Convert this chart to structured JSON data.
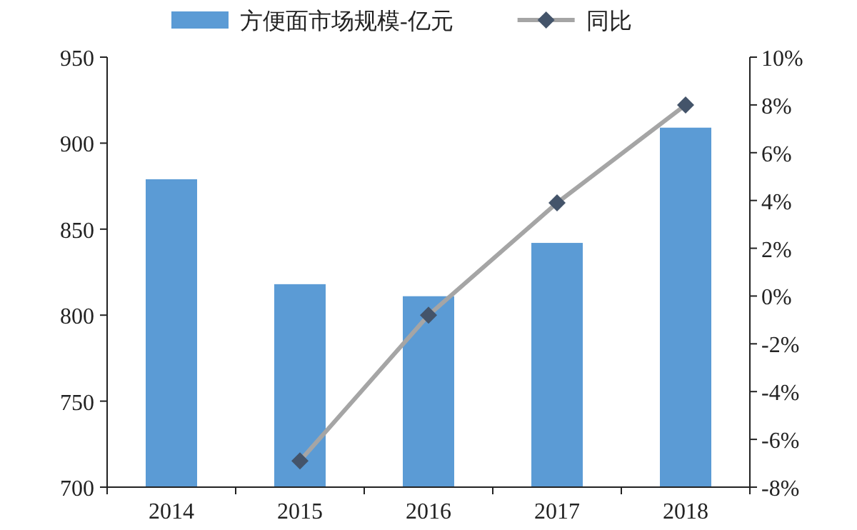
{
  "chart_data": {
    "type": "bar",
    "categories": [
      "2014",
      "2015",
      "2016",
      "2017",
      "2018"
    ],
    "series": [
      {
        "name": "方便面市场规模-亿元",
        "color": "#5b9bd5",
        "values": [
          879,
          818,
          811,
          842,
          909
        ]
      },
      {
        "name": "同比",
        "type": "line",
        "axis": "y2",
        "color": "#a5a5a5",
        "marker": "diamond",
        "values": [
          null,
          -6.9,
          -0.8,
          3.9,
          8.0
        ]
      }
    ],
    "ylim": [
      700,
      950
    ],
    "yticks": [
      700,
      750,
      800,
      850,
      900,
      950
    ],
    "y2lim": [
      -8,
      10
    ],
    "y2ticks": [
      {
        "value": -8,
        "label": "-8%"
      },
      {
        "value": -6,
        "label": "-6%"
      },
      {
        "value": -4,
        "label": "-4%"
      },
      {
        "value": -2,
        "label": "-2%"
      },
      {
        "value": 0,
        "label": "0%"
      },
      {
        "value": 2,
        "label": "2%"
      },
      {
        "value": 4,
        "label": "4%"
      },
      {
        "value": 6,
        "label": "6%"
      },
      {
        "value": 8,
        "label": "8%"
      },
      {
        "value": 10,
        "label": "10%"
      }
    ],
    "legend": "top",
    "grid": false
  }
}
